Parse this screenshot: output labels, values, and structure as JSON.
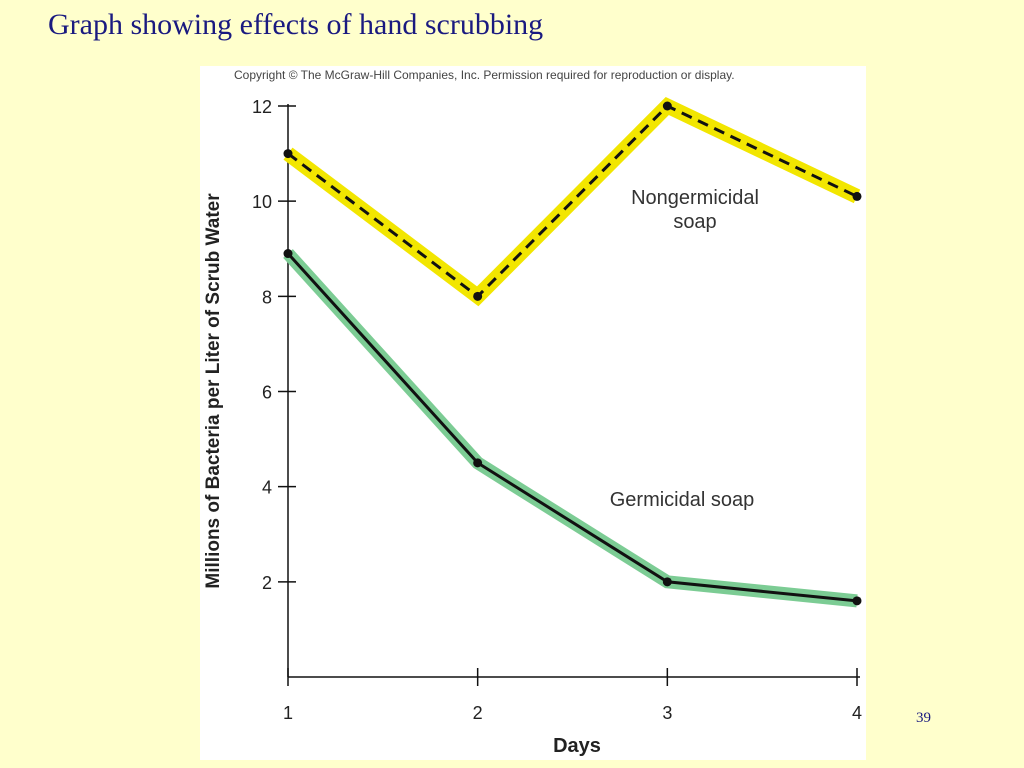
{
  "slide": {
    "title": "Graph showing effects of hand scrubbing",
    "page_number": "39"
  },
  "copyright": "Copyright © The McGraw-Hill Companies, Inc. Permission required for reproduction or display.",
  "colors": {
    "background": "#ffffcc",
    "title_text": "#1a1a80",
    "nongermicidal_highlight": "#f2e600",
    "germicidal_highlight": "#7ccc94",
    "line": "#111111"
  },
  "chart_data": {
    "type": "line",
    "title": "",
    "xlabel": "Days",
    "ylabel": "Millions of Bacteria per Liter of Scrub Water",
    "x": [
      1,
      2,
      3,
      4
    ],
    "x_ticks": [
      "1",
      "2",
      "3",
      "4"
    ],
    "y_ticks": [
      "2",
      "4",
      "6",
      "8",
      "10",
      "12"
    ],
    "ylim": [
      0,
      12
    ],
    "grid": false,
    "series": [
      {
        "name": "Nongermicidal soap",
        "label_lines": [
          "Nongermicidal",
          "soap"
        ],
        "values": [
          11,
          8,
          12,
          10.1
        ],
        "style": "dashed",
        "highlight": "yellow"
      },
      {
        "name": "Germicidal soap",
        "label_lines": [
          "Germicidal soap"
        ],
        "values": [
          8.9,
          4.5,
          2.0,
          1.6
        ],
        "style": "solid",
        "highlight": "green"
      }
    ]
  }
}
